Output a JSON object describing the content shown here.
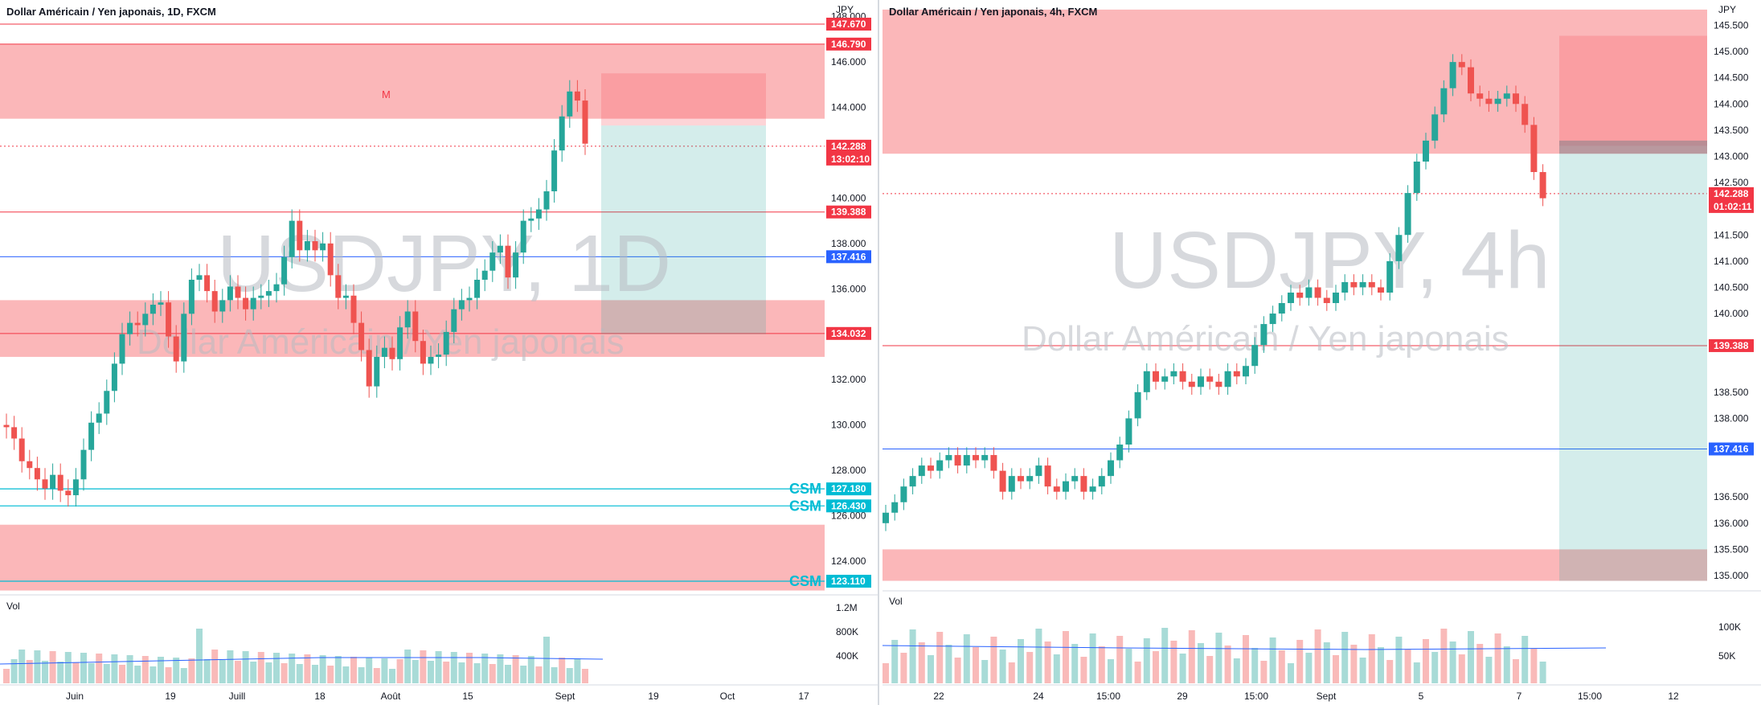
{
  "colors": {
    "up": "#26a69a",
    "down": "#ef5350",
    "zone": "#f77c80",
    "stop": "#f7525f",
    "target": "#26a69a",
    "blue": "#2962ff",
    "cyan": "#00bcd4",
    "price": "#f23645"
  },
  "chart_data": [
    {
      "type": "candlestick",
      "title": "Dollar Américain / Yen japonais, 1D, FXCM",
      "watermark_symbol": "USDJPY, 1D",
      "watermark_name": "Dollar Américain / Yen japonais",
      "axis_unit": "JPY",
      "y_ticks": [
        "148.000",
        "146.000",
        "144.000",
        "142.000",
        "140.000",
        "138.000",
        "136.000",
        "134.000",
        "132.000",
        "130.000",
        "128.000",
        "126.000",
        "124.000"
      ],
      "x_ticks": [
        "Juin",
        "19",
        "Juill",
        "18",
        "Août",
        "15",
        "Sept",
        "19",
        "Oct",
        "17"
      ],
      "volume_label": "Vol",
      "volume_ticks": [
        "1.2M",
        "800K",
        "400K"
      ],
      "price_tags": [
        {
          "value": "147.670",
          "color": "#f23645"
        },
        {
          "value": "146.790",
          "color": "#f23645"
        },
        {
          "value": "142.288",
          "color": "#f23645",
          "sub": "13:02:10"
        },
        {
          "value": "139.388",
          "color": "#f23645"
        },
        {
          "value": "137.416",
          "color": "#2962ff"
        },
        {
          "value": "134.032",
          "color": "#f23645"
        },
        {
          "value": "127.180",
          "color": "#00bcd4"
        },
        {
          "value": "126.430",
          "color": "#00bcd4"
        },
        {
          "value": "123.110",
          "color": "#00bcd4"
        }
      ],
      "annotations": [
        "M",
        "CSM",
        "CSM",
        "CSM"
      ],
      "zones": [
        [
          143.5,
          146.8
        ],
        [
          133.0,
          135.5
        ],
        [
          122.7,
          125.6
        ]
      ],
      "ylim": [
        122.7,
        149.0
      ]
    },
    {
      "type": "candlestick",
      "title": "Dollar Américain / Yen japonais, 4h, FXCM",
      "watermark_symbol": "USDJPY, 4h",
      "watermark_name": "Dollar Américain / Yen japonais",
      "axis_unit": "JPY",
      "y_ticks": [
        "145.500",
        "145.000",
        "144.500",
        "144.000",
        "143.500",
        "143.000",
        "142.500",
        "141.500",
        "141.000",
        "140.500",
        "140.000",
        "138.500",
        "138.000",
        "136.500",
        "136.000",
        "135.500",
        "135.000"
      ],
      "x_ticks": [
        "22",
        "24",
        "15:00",
        "29",
        "15:00",
        "Sept",
        "5",
        "7",
        "15:00",
        "12"
      ],
      "volume_label": "Vol",
      "volume_ticks": [
        "100K",
        "50K"
      ],
      "price_tags": [
        {
          "value": "142.288",
          "color": "#f23645",
          "sub": "01:02:11"
        },
        {
          "value": "139.388",
          "color": "#f23645"
        },
        {
          "value": "137.416",
          "color": "#2962ff"
        }
      ],
      "zones": [
        [
          143.05,
          145.8
        ],
        [
          134.9,
          135.5
        ]
      ],
      "ylim": [
        134.9,
        145.8
      ]
    }
  ]
}
